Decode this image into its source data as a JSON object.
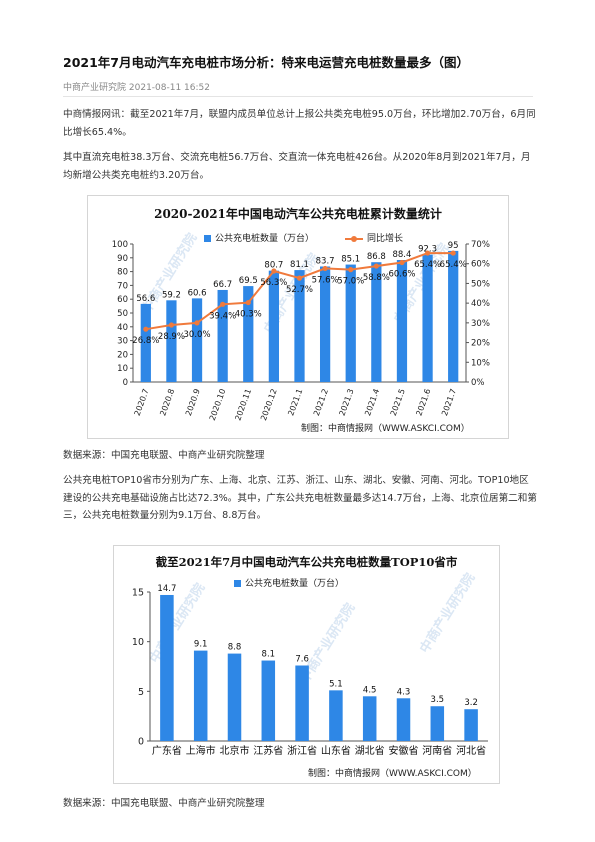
{
  "article": {
    "title": "2021年7月电动汽车充电桩市场分析：特来电运营充电桩数量最多（图）",
    "source_name": "中商产业研究院",
    "date": "2021-08-11 16:52",
    "paragraph1": "中商情报网讯：截至2021年7月，联盟内成员单位总计上报公共类充电桩95.0万台，环比增加2.70万台，6月同比增长65.4%。",
    "paragraph2": "其中直流充电桩38.3万台、交流充电桩56.7万台、交直流一体充电桩426台。从2020年8月到2021年7月，月均新增公共类充电桩约3.20万台。",
    "data_source_1": "数据来源：中国充电联盟、中商产业研究院整理",
    "paragraph3": "公共充电桩TOP10省市分别为广东、上海、北京、江苏、浙江、山东、湖北、安徽、河南、河北。TOP10地区建设的公共充电基础设施占比达72.3%。其中，广东公共充电桩数量最多达14.7万台，上海、北京位居第二和第三，公共充电桩数量分别为9.1万台、8.8万台。",
    "data_source_2": "数据来源：中国充电联盟、中商产业研究院整理"
  },
  "watermark_text": "中商产业研究院",
  "colors": {
    "bar": "#2e87e6",
    "line": "#f07a3c",
    "axis": "#555555"
  },
  "chart_data": [
    {
      "type": "bar",
      "title": "2020-2021年中国电动汽车公共充电桩累计数量统计",
      "categories": [
        "2020.7",
        "2020.8",
        "2020.9",
        "2020.10",
        "2020.11",
        "2020.12",
        "2021.1",
        "2021.2",
        "2021.3",
        "2021.4",
        "2021.5",
        "2021.6",
        "2021.7"
      ],
      "series": [
        {
          "name": "公共充电桩数量（万台）",
          "type": "bar",
          "axis": "left",
          "values": [
            56.6,
            59.2,
            60.6,
            66.7,
            69.5,
            80.7,
            81.1,
            83.7,
            85.1,
            86.8,
            88.4,
            92.3,
            95
          ],
          "labels": [
            "56.6",
            "59.2",
            "60.6",
            "66.7",
            "69.5",
            "80.7",
            "81.1",
            "83.7",
            "85.1",
            "86.8",
            "88.4",
            "92.3",
            "95"
          ]
        },
        {
          "name": "同比增长",
          "type": "line",
          "axis": "right",
          "values": [
            26.8,
            28.9,
            30.0,
            39.4,
            40.3,
            56.3,
            52.7,
            57.6,
            57.0,
            58.8,
            60.6,
            65.4,
            65.4
          ],
          "labels": [
            "26.8%",
            "28.9%",
            "30.0%",
            "39.4%",
            "40.3%",
            "56.3%",
            "52.7%",
            "57.6%",
            "57.0%",
            "58.8%",
            "60.6%",
            "65.4%",
            "65.4%"
          ]
        }
      ],
      "ylim": [
        0,
        100
      ],
      "y_ticks": [
        "0",
        "10",
        "20",
        "30",
        "40",
        "50",
        "60",
        "70",
        "80",
        "90",
        "100"
      ],
      "y2lim": [
        0,
        70
      ],
      "y2_ticks": [
        "0%",
        "10%",
        "20%",
        "30%",
        "40%",
        "50%",
        "60%",
        "70%"
      ],
      "legend_position": "top",
      "grid": false,
      "credit": "制图：中商情报网（WWW.ASKCI.COM）"
    },
    {
      "type": "bar",
      "title": "截至2021年7月中国电动汽车公共充电桩数量TOP10省市",
      "categories": [
        "广东省",
        "上海市",
        "北京市",
        "江苏省",
        "浙江省",
        "山东省",
        "湖北省",
        "安徽省",
        "河南省",
        "河北省"
      ],
      "series": [
        {
          "name": "公共充电桩数量（万台）",
          "values": [
            14.7,
            9.1,
            8.8,
            8.1,
            7.6,
            5.1,
            4.5,
            4.3,
            3.5,
            3.2
          ],
          "labels": [
            "14.7",
            "9.1",
            "8.8",
            "8.1",
            "7.6",
            "5.1",
            "4.5",
            "4.3",
            "3.5",
            "3.2"
          ]
        }
      ],
      "ylim": [
        0,
        15
      ],
      "y_ticks": [
        "0",
        "5",
        "10",
        "15"
      ],
      "legend_position": "top",
      "grid": false,
      "credit": "制图：中商情报网（WWW.ASKCI.COM）"
    }
  ]
}
